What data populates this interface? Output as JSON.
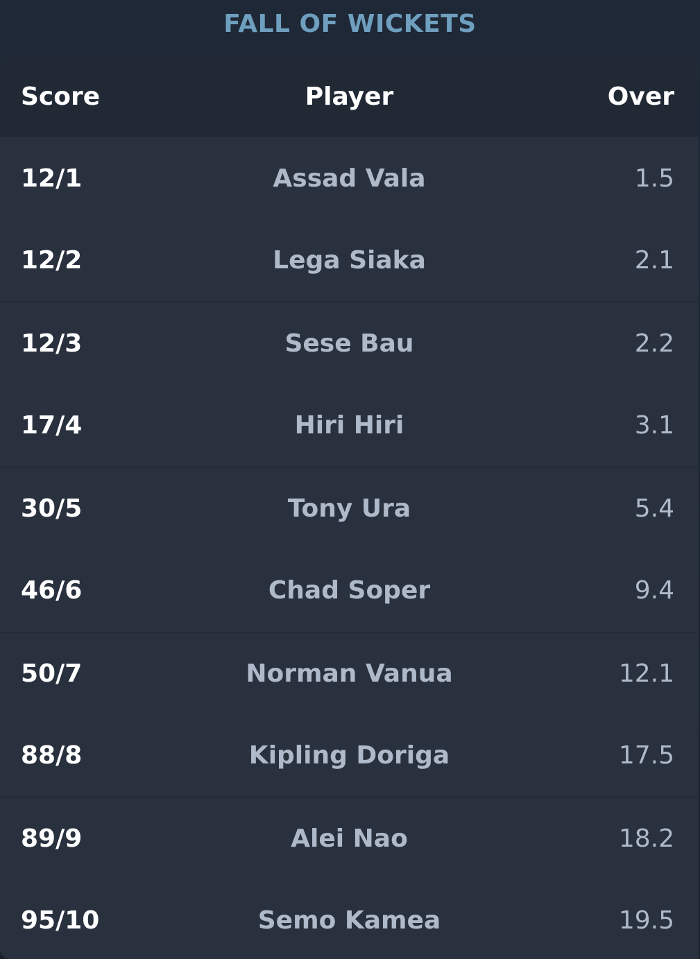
{
  "title": "FALL OF WICKETS",
  "table": {
    "headers": {
      "score": "Score",
      "player": "Player",
      "over": "Over"
    },
    "rows": [
      {
        "score": "12/1",
        "player": "Assad Vala",
        "over": "1.5"
      },
      {
        "score": "12/2",
        "player": "Lega Siaka",
        "over": "2.1"
      },
      {
        "score": "12/3",
        "player": "Sese Bau",
        "over": "2.2"
      },
      {
        "score": "17/4",
        "player": "Hiri Hiri",
        "over": "3.1"
      },
      {
        "score": "30/5",
        "player": "Tony Ura",
        "over": "5.4"
      },
      {
        "score": "46/6",
        "player": "Chad Soper",
        "over": "9.4"
      },
      {
        "score": "50/7",
        "player": "Norman Vanua",
        "over": "12.1"
      },
      {
        "score": "88/8",
        "player": "Kipling Doriga",
        "over": "17.5"
      },
      {
        "score": "89/9",
        "player": "Alei Nao",
        "over": "18.2"
      },
      {
        "score": "95/10",
        "player": "Semo Kamea",
        "over": "19.5"
      }
    ]
  },
  "colors": {
    "title": "#6f9fbf",
    "card": "#29313e",
    "header": "#212935",
    "score_text": "#ffffff",
    "muted_text": "#aeb9c9"
  }
}
